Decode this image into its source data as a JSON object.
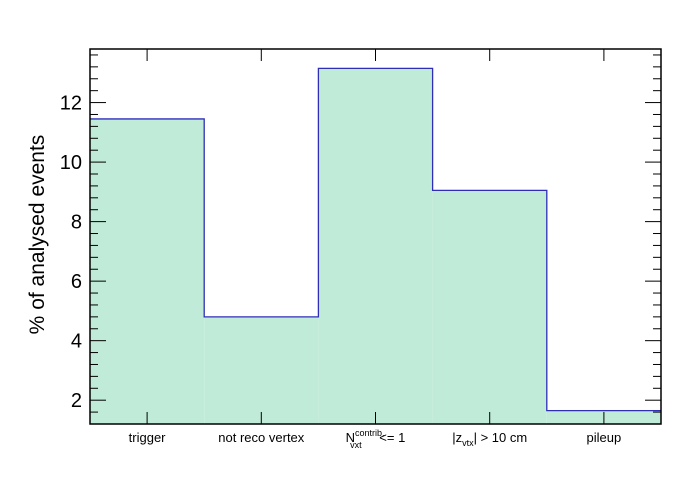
{
  "chart_data": {
    "type": "bar",
    "categories": [
      "trigger",
      "not reco vertex",
      "N_vxt^contrib. <= 1",
      "|z_vtx| > 10 cm",
      "pileup"
    ],
    "category_labels": [
      {
        "text": "trigger"
      },
      {
        "text": "not reco vertex"
      },
      {
        "main": "N",
        "sub": "vxt",
        "sup": "contrib.",
        "rest": " <= 1"
      },
      {
        "pre": "|z",
        "sub": "vtx",
        "rest": "| > 10 cm"
      },
      {
        "text": "pileup"
      }
    ],
    "values": [
      11.45,
      4.8,
      13.15,
      9.05,
      1.65
    ],
    "xlabel": "",
    "ylabel": "% of analysed events",
    "ylim": [
      1.2,
      13.8
    ],
    "yticks_major": [
      2,
      4,
      6,
      8,
      10,
      12
    ],
    "ytick_labels": [
      "2",
      "4",
      "6",
      "8",
      "10",
      "12"
    ],
    "grid": false,
    "fill_color": "#c1ebd9",
    "line_color": "#2e2eb8"
  }
}
